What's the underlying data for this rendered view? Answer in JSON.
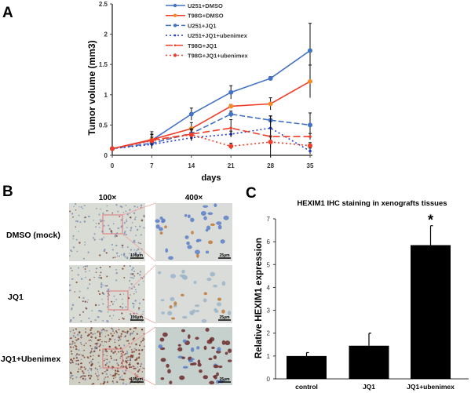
{
  "chart_data": [
    {
      "panel": "A",
      "type": "line",
      "xlabel": "days",
      "ylabel": "Tumor volume (mm3)",
      "x": [
        0,
        7,
        14,
        21,
        28,
        35
      ],
      "xticks": [
        "0",
        "7",
        "14",
        "21",
        "28",
        "35"
      ],
      "yticks": [
        "0",
        "0.5",
        "1",
        "1.5",
        "2",
        "2.5"
      ],
      "ylim": [
        0,
        2.5
      ],
      "legend": "top-center",
      "series": [
        {
          "name": "U251+DMSO",
          "color": "#4472c4",
          "style": "solid",
          "values": [
            0.11,
            0.25,
            0.68,
            1.04,
            1.27,
            1.73
          ],
          "err": [
            0.02,
            0.1,
            0.1,
            0.11,
            0.03,
            0.45
          ]
        },
        {
          "name": "T98G+DMSO",
          "color": "#f03c28",
          "style": "solid",
          "values": [
            0.11,
            0.26,
            0.44,
            0.81,
            0.85,
            1.22
          ],
          "err": [
            0.02,
            0.08,
            0.1,
            0.03,
            0.1,
            0.27
          ]
        },
        {
          "name": "U251+JQ1",
          "color": "#4472c4",
          "style": "dashed",
          "values": [
            0.11,
            0.2,
            0.36,
            0.68,
            0.58,
            0.5
          ],
          "err": [
            0.02,
            0.05,
            0.08,
            0.05,
            0.07,
            0.2
          ]
        },
        {
          "name": "U251+JQ1+ubenimex",
          "color": "#2a3fd0",
          "style": "dotted",
          "values": [
            0.11,
            0.18,
            0.29,
            0.35,
            0.45,
            0.07
          ],
          "err": [
            0.02,
            0.03,
            0.05,
            0.05,
            0.2,
            0.05
          ]
        },
        {
          "name": "T98G+JQ1",
          "color": "#f03c28",
          "style": "longdash",
          "values": [
            0.11,
            0.25,
            0.35,
            0.45,
            0.31,
            0.31
          ],
          "err": [
            0.02,
            0.14,
            0.07,
            0.14,
            0.34,
            0.05
          ]
        },
        {
          "name": "T98G+JQ1+ubenimex",
          "color": "#f03c28",
          "style": "dotted",
          "values": [
            0.11,
            0.24,
            0.34,
            0.15,
            0.22,
            0.16
          ],
          "err": [
            0.02,
            0.06,
            0.1,
            0.05,
            0.1,
            0.05
          ]
        }
      ]
    },
    {
      "panel": "C",
      "type": "bar",
      "title": "HEXIM1 IHC staining in xenografts tissues",
      "ylabel": "Relative HEXIM1 expression",
      "categories": [
        "control",
        "JQ1",
        "JQ1+ubenimex"
      ],
      "values": [
        1.0,
        1.45,
        5.85
      ],
      "err": [
        0.15,
        0.55,
        0.85
      ],
      "annotations": [
        "",
        "",
        "*"
      ],
      "yticks": [
        "0",
        "1",
        "2",
        "3",
        "4",
        "5",
        "6",
        "7"
      ],
      "ylim": [
        0,
        7
      ],
      "color": "#000000"
    }
  ],
  "panel_labels": {
    "a": "A",
    "b": "B",
    "c": "C"
  },
  "panel_b": {
    "col_headers": [
      "100×",
      "400×"
    ],
    "rows": [
      {
        "label": "DMSO (mock)",
        "scale_low": "100μm",
        "scale_high": "25μm"
      },
      {
        "label": "JQ1",
        "scale_low": "100μm",
        "scale_high": "25μm"
      },
      {
        "label": "JQ1+Ubenimex",
        "scale_low": "100μm",
        "scale_high": "25μm"
      }
    ]
  }
}
